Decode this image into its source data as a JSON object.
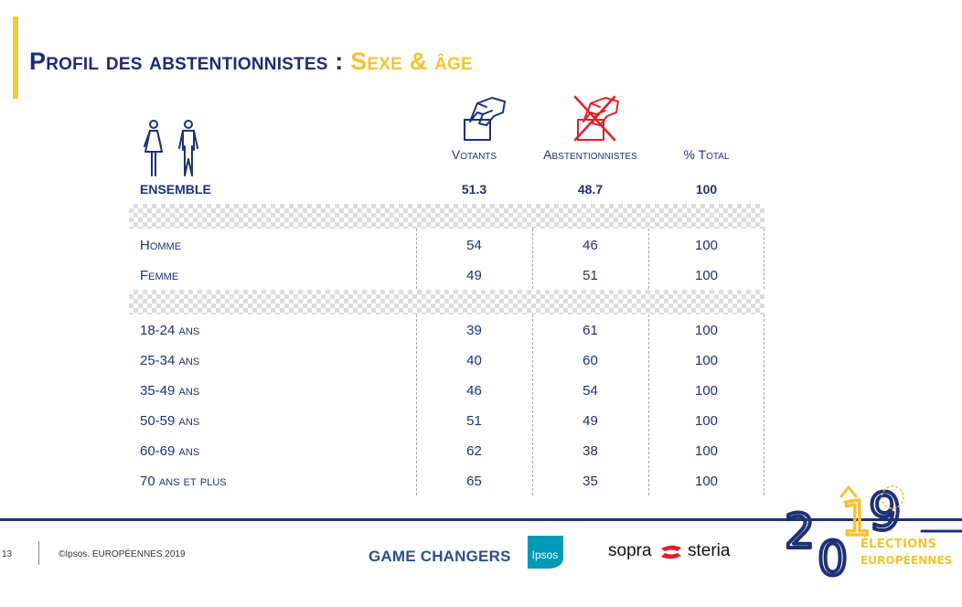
{
  "title": {
    "part1": "Profil des abstentionnistes : ",
    "part2": "Sexe & âge"
  },
  "columns": {
    "votants": "Votants",
    "abstentionnistes": "Abstentionnistes",
    "total": "% Total"
  },
  "table": {
    "ensemble": {
      "label": "ENSEMBLE",
      "votants": "51.3",
      "abstentionnistes": "48.7",
      "total": "100"
    },
    "sexe": [
      {
        "label": "Homme",
        "votants": "54",
        "abstentionnistes": "46",
        "total": "100"
      },
      {
        "label": "Femme",
        "votants": "49",
        "abstentionnistes": "51",
        "total": "100"
      }
    ],
    "age": [
      {
        "label": "18-24 ans",
        "votants": "39",
        "abstentionnistes": "61",
        "total": "100"
      },
      {
        "label": "25-34 ans",
        "votants": "40",
        "abstentionnistes": "60",
        "total": "100"
      },
      {
        "label": "35-49 ans",
        "votants": "46",
        "abstentionnistes": "54",
        "total": "100"
      },
      {
        "label": "50-59 ans",
        "votants": "51",
        "abstentionnistes": "49",
        "total": "100"
      },
      {
        "label": "60-69 ans",
        "votants": "62",
        "abstentionnistes": "38",
        "total": "100"
      },
      {
        "label": "70 ans et plus",
        "votants": "65",
        "abstentionnistes": "35",
        "total": "100"
      }
    ]
  },
  "footer": {
    "page_number": "13",
    "copyright": "©Ipsos.  EUROPÉENNES 2019",
    "game_changers": "GAME CHANGERS",
    "ipsos": "Ipsos",
    "sopra": "sopra",
    "steria": "steria",
    "election_year_digits": [
      "2",
      "0",
      "1",
      "9"
    ],
    "election_line1": "ÉLECTIONS",
    "election_line2": "EUROPÉENNES"
  },
  "icons": {
    "people": "man-woman-icon",
    "votants": "hand-voting-icon",
    "abstentionnistes": "hand-voting-crossed-icon"
  },
  "colors": {
    "navy": "#1d3176",
    "yellow": "#f5c331",
    "red": "#e11f26",
    "ipsos_blue": "#0099b8"
  }
}
